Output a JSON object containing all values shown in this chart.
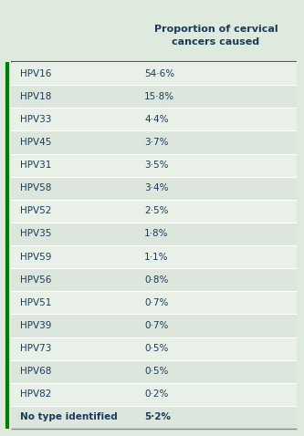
{
  "header_text": "Proportion of cervical\ncancers caused",
  "rows": [
    [
      "HPV16",
      "54·6%"
    ],
    [
      "HPV18",
      "15·8%"
    ],
    [
      "HPV33",
      "4·4%"
    ],
    [
      "HPV45",
      "3·7%"
    ],
    [
      "HPV31",
      "3·5%"
    ],
    [
      "HPV58",
      "3·4%"
    ],
    [
      "HPV52",
      "2·5%"
    ],
    [
      "HPV35",
      "1·8%"
    ],
    [
      "HPV59",
      "1·1%"
    ],
    [
      "HPV56",
      "0·8%"
    ],
    [
      "HPV51",
      "0·7%"
    ],
    [
      "HPV39",
      "0·7%"
    ],
    [
      "HPV73",
      "0·5%"
    ],
    [
      "HPV68",
      "0·5%"
    ],
    [
      "HPV82",
      "0·2%"
    ],
    [
      "No type identified",
      "5·2%"
    ]
  ],
  "bg_color": "#deeade",
  "row_colors": [
    "#e8f0e8",
    "#dce6dc"
  ],
  "header_bg": "#deeade",
  "text_color": "#1a3a5c",
  "separator_color": "#ffffff",
  "border_top_color": "#555555",
  "border_bottom_color": "#aaaaaa",
  "left_border_color": "#008000",
  "figsize": [
    3.33,
    4.78
  ],
  "dpi": 100,
  "font_size": 7.5,
  "header_font_size": 8.0
}
